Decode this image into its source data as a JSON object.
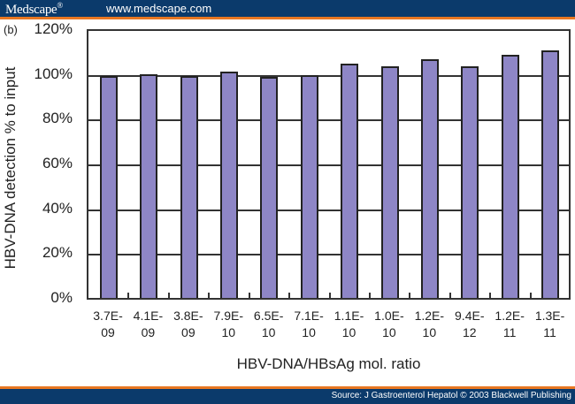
{
  "header": {
    "brand": "Medscape",
    "brand_mark": "®",
    "site": "www.medscape.com"
  },
  "footer": {
    "source": "Source: J Gastroenterol Hepatol © 2003 Blackwell Publishing"
  },
  "colors": {
    "header_bg": "#0b3a6b",
    "header_accent": "#e87722",
    "bar_fill": "#8e86c6"
  },
  "chart_data": {
    "type": "bar",
    "panel_label": "(b)",
    "title": "",
    "xlabel": "HBV-DNA/HBsAg mol. ratio",
    "ylabel": "HBV-DNA detection % to input",
    "ylim": [
      0,
      120
    ],
    "yticks": [
      "0%",
      "20%",
      "40%",
      "60%",
      "80%",
      "100%",
      "120%"
    ],
    "grid": "horizontal",
    "legend": null,
    "categories": [
      "3.7E-09",
      "4.1E-09",
      "3.8E-09",
      "7.9E-10",
      "6.5E-10",
      "7.1E-10",
      "1.1E-10",
      "1.0E-10",
      "1.2E-10",
      "9.4E-12",
      "1.2E-11",
      "1.3E-11"
    ],
    "category_lines": [
      [
        "3.7E-",
        "09"
      ],
      [
        "4.1E-",
        "09"
      ],
      [
        "3.8E-",
        "09"
      ],
      [
        "7.9E-",
        "10"
      ],
      [
        "6.5E-",
        "10"
      ],
      [
        "7.1E-",
        "10"
      ],
      [
        "1.1E-",
        "10"
      ],
      [
        "1.0E-",
        "10"
      ],
      [
        "1.2E-",
        "10"
      ],
      [
        "9.4E-",
        "12"
      ],
      [
        "1.2E-",
        "11"
      ],
      [
        "1.3E-",
        "11"
      ]
    ],
    "values": [
      99,
      100,
      99,
      101,
      98.5,
      99.5,
      104.5,
      103.5,
      106.5,
      103.5,
      108.5,
      110.5
    ]
  }
}
